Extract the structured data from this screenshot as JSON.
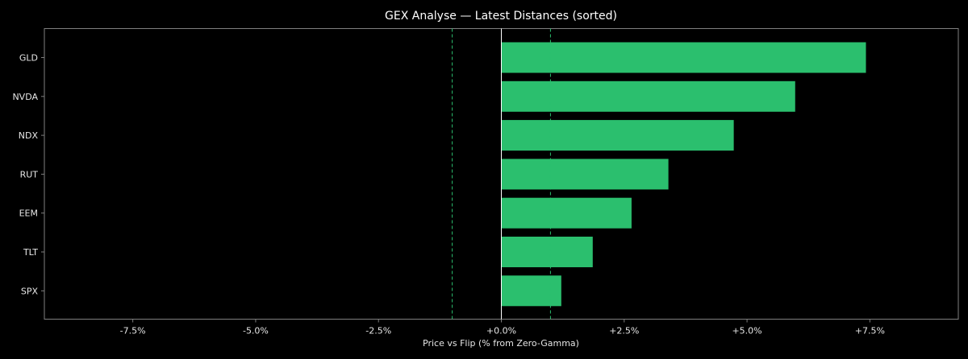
{
  "chart_data": {
    "type": "bar",
    "orientation": "horizontal",
    "title": "GEX Analyse — Latest Distances (sorted)",
    "xlabel": "Price vs Flip (% from Zero-Gamma)",
    "ylabel": "",
    "categories": [
      "GLD",
      "NVDA",
      "NDX",
      "RUT",
      "EEM",
      "TLT",
      "SPX"
    ],
    "values": [
      7.42,
      5.98,
      4.73,
      3.4,
      2.65,
      1.86,
      1.22
    ],
    "xlim": [
      -9.3,
      9.3
    ],
    "x_ticks": [
      -7.5,
      -5.0,
      -2.5,
      0.0,
      2.5,
      5.0,
      7.5
    ],
    "x_tick_labels": [
      "-7.5%",
      "-5.0%",
      "-2.5%",
      "+0.0%",
      "+2.5%",
      "+5.0%",
      "+7.5%"
    ],
    "reference_lines": [
      {
        "x": 0.0,
        "style": "solid",
        "color": "#ffffff"
      },
      {
        "x": -1.0,
        "style": "dashed",
        "color": "#2bbf6e"
      },
      {
        "x": 1.0,
        "style": "dashed",
        "color": "#2bbf6e"
      }
    ],
    "grid": false,
    "colors": {
      "background": "#000000",
      "bar": "#2bbf6e",
      "frame": "#7f7f7f",
      "text": "#e6e6e6",
      "title": "#ffffff"
    }
  }
}
